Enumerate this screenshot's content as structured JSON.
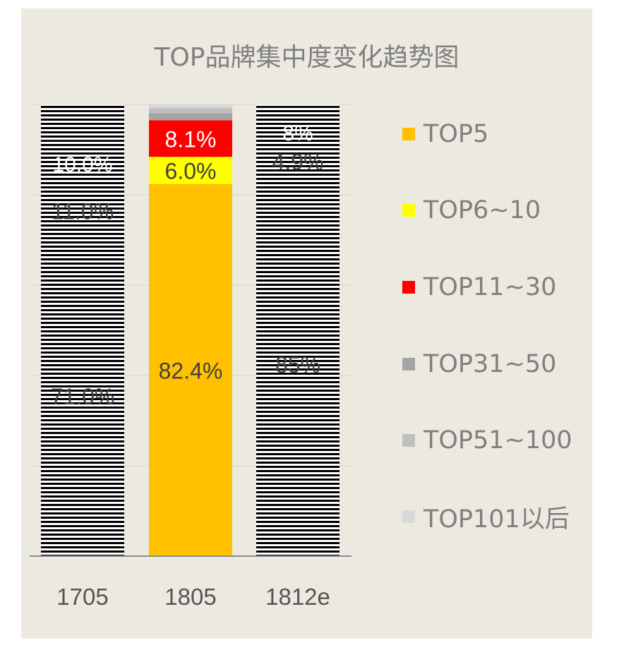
{
  "chart_data": {
    "type": "bar",
    "stacked": true,
    "title": "TOP品牌集中度变化趋势图",
    "categories": [
      "1705",
      "1805",
      "1812e"
    ],
    "series": [
      {
        "name": "TOP5",
        "color": "#ffc000",
        "values": [
          71.0,
          82.4,
          85
        ],
        "labels": [
          "71.0%",
          "82.4%",
          "85%"
        ]
      },
      {
        "name": "TOP6~10",
        "color": "#ffff00",
        "values": [
          11.0,
          6.0,
          4.9
        ],
        "labels": [
          "11.0%",
          "6.0%",
          "4.9%"
        ]
      },
      {
        "name": "TOP11~30",
        "color": "#ff0000",
        "values": [
          10.0,
          8.1,
          8
        ],
        "labels": [
          "10.0%",
          "8.1%",
          "8%"
        ]
      },
      {
        "name": "TOP31~50",
        "color": "#a5a5a5",
        "values": [
          4.0,
          1.6,
          1.0
        ],
        "labels": [
          "",
          "",
          ""
        ]
      },
      {
        "name": "TOP51~100",
        "color": "#bfbfbf",
        "values": [
          2.5,
          1.1,
          0.6
        ],
        "labels": [
          "",
          "",
          ""
        ]
      },
      {
        "name": "TOP101以后",
        "color": "#d9d9d9",
        "values": [
          1.5,
          0.8,
          0.5
        ],
        "labels": [
          "",
          "",
          ""
        ]
      }
    ],
    "bar_fill": [
      "striped",
      "solid",
      "striped"
    ],
    "ylim": [
      0,
      100
    ],
    "legend_position": "right",
    "grid": true
  }
}
